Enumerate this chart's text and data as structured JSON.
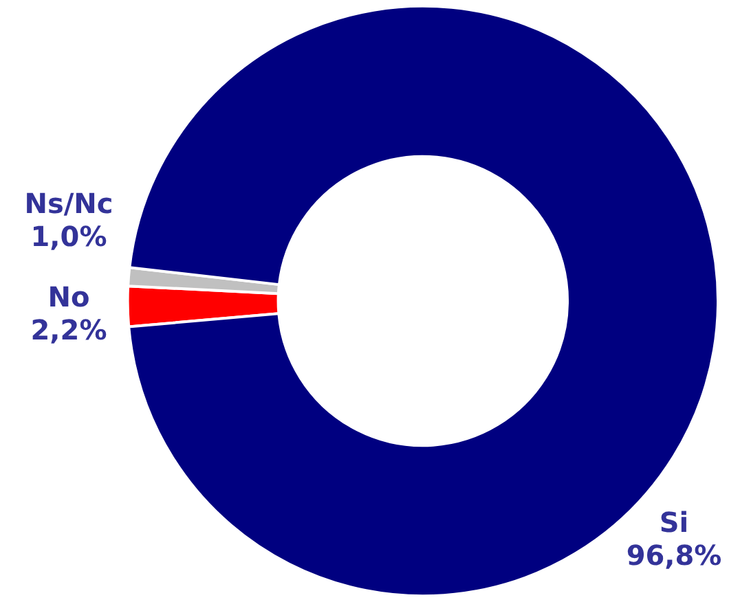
{
  "chart_data": {
    "type": "donut",
    "categories": [
      "No",
      "Ns/Nc",
      "Si"
    ],
    "values": [
      2.2,
      1.0,
      96.8
    ],
    "colors": [
      "#ff0000",
      "#c0c0c0",
      "#000080"
    ],
    "value_labels": [
      "2,2%",
      "1,0%",
      "96,8%"
    ],
    "legend": false
  }
}
